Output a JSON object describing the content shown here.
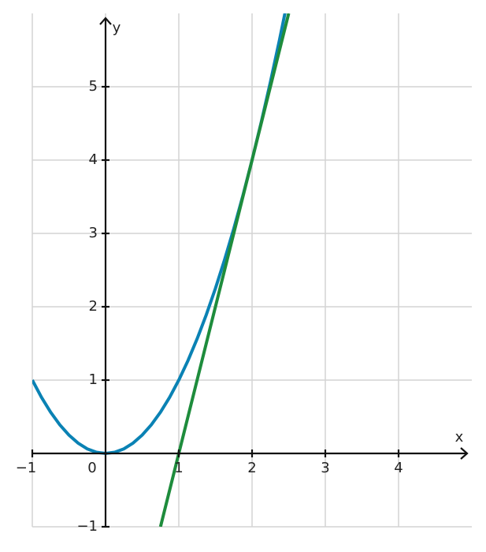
{
  "chart_data": {
    "type": "line",
    "x_label": "x",
    "y_label": "y",
    "xlim": [
      -1,
      5
    ],
    "ylim": [
      -1,
      6
    ],
    "xticks": [
      {
        "value": -1,
        "label": "−1"
      },
      0,
      1,
      2,
      3,
      4
    ],
    "yticks": [
      {
        "value": -1,
        "label": "−1"
      },
      1,
      2,
      3,
      4,
      5
    ],
    "grid": true,
    "series": [
      {
        "color": "#0a82b4",
        "x": [
          -1,
          -0.875,
          -0.75,
          -0.625,
          -0.5,
          -0.375,
          -0.25,
          -0.125,
          0,
          0.125,
          0.25,
          0.375,
          0.5,
          0.625,
          0.75,
          0.875,
          1,
          1.125,
          1.25,
          1.375,
          1.5,
          1.625,
          1.75,
          1.875,
          2,
          2.125,
          2.25,
          2.375,
          2.5
        ],
        "values": [
          1,
          0.765625,
          0.5625,
          0.390625,
          0.25,
          0.140625,
          0.0625,
          0.015625,
          0,
          0.015625,
          0.0625,
          0.140625,
          0.25,
          0.390625,
          0.5625,
          0.765625,
          1,
          1.265625,
          1.5625,
          1.890625,
          2.25,
          2.640625,
          3.0625,
          3.515625,
          4,
          4.515625,
          5.0625,
          5.640625,
          6.25
        ]
      },
      {
        "color": "#1e8c3c",
        "x": [
          0.75,
          2.5
        ],
        "values": [
          -1,
          6
        ]
      }
    ]
  }
}
